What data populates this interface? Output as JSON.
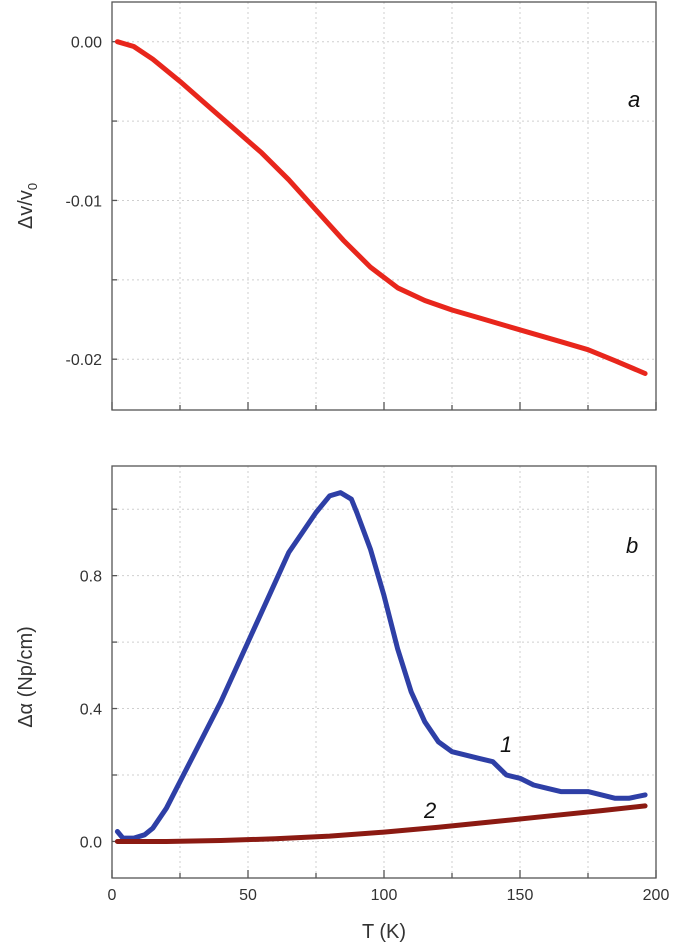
{
  "chart_data": [
    {
      "panel": "a",
      "type": "line",
      "ylabel": "Δv/v",
      "ylabel_subscript": "0",
      "xlabel": "",
      "xlim": [
        0,
        200
      ],
      "ylim": [
        -0.0232,
        0.0025
      ],
      "xticks": [
        0,
        50,
        100,
        150,
        200
      ],
      "yticks": [
        0.0,
        -0.01,
        -0.02
      ],
      "ytick_labels": [
        "0.00",
        "-0.01",
        "-0.02"
      ],
      "grid": true,
      "series": [
        {
          "color": "#e8261c",
          "points": [
            [
              2,
              0.0
            ],
            [
              8,
              -0.0003
            ],
            [
              15,
              -0.0011
            ],
            [
              25,
              -0.0025
            ],
            [
              35,
              -0.004
            ],
            [
              45,
              -0.0055
            ],
            [
              55,
              -0.007
            ],
            [
              65,
              -0.0087
            ],
            [
              75,
              -0.0106
            ],
            [
              85,
              -0.0125
            ],
            [
              95,
              -0.0142
            ],
            [
              105,
              -0.0155
            ],
            [
              115,
              -0.0163
            ],
            [
              125,
              -0.0169
            ],
            [
              135,
              -0.0174
            ],
            [
              145,
              -0.0179
            ],
            [
              155,
              -0.0184
            ],
            [
              165,
              -0.0189
            ],
            [
              175,
              -0.0194
            ],
            [
              185,
              -0.0201
            ],
            [
              196,
              -0.0209
            ]
          ]
        }
      ]
    },
    {
      "panel": "b",
      "type": "line",
      "ylabel": "Δα (Np/cm)",
      "xlabel": "T (K)",
      "xlim": [
        0,
        200
      ],
      "ylim": [
        -0.11,
        1.13
      ],
      "xticks": [
        0,
        50,
        100,
        150,
        200
      ],
      "xtick_labels": [
        "0",
        "50",
        "100",
        "150",
        "200"
      ],
      "yticks": [
        0.0,
        0.4,
        0.8
      ],
      "ytick_labels": [
        "0.0",
        "0.4",
        "0.8"
      ],
      "grid": true,
      "series": [
        {
          "name": "1",
          "color": "#2e3fa6",
          "points": [
            [
              2,
              0.03
            ],
            [
              4,
              0.01
            ],
            [
              8,
              0.01
            ],
            [
              12,
              0.02
            ],
            [
              15,
              0.04
            ],
            [
              20,
              0.1
            ],
            [
              25,
              0.18
            ],
            [
              30,
              0.26
            ],
            [
              40,
              0.42
            ],
            [
              50,
              0.6
            ],
            [
              60,
              0.78
            ],
            [
              65,
              0.87
            ],
            [
              70,
              0.93
            ],
            [
              75,
              0.99
            ],
            [
              80,
              1.04
            ],
            [
              84,
              1.05
            ],
            [
              88,
              1.03
            ],
            [
              90,
              0.99
            ],
            [
              95,
              0.88
            ],
            [
              100,
              0.74
            ],
            [
              105,
              0.58
            ],
            [
              110,
              0.45
            ],
            [
              115,
              0.36
            ],
            [
              120,
              0.3
            ],
            [
              125,
              0.27
            ],
            [
              130,
              0.26
            ],
            [
              135,
              0.25
            ],
            [
              140,
              0.24
            ],
            [
              145,
              0.2
            ],
            [
              150,
              0.19
            ],
            [
              155,
              0.17
            ],
            [
              160,
              0.16
            ],
            [
              165,
              0.15
            ],
            [
              170,
              0.15
            ],
            [
              175,
              0.15
            ],
            [
              180,
              0.14
            ],
            [
              185,
              0.13
            ],
            [
              190,
              0.13
            ],
            [
              196,
              0.14
            ]
          ]
        },
        {
          "name": "2",
          "color": "#8b1a12",
          "points": [
            [
              2,
              0.0
            ],
            [
              20,
              0.0
            ],
            [
              40,
              0.003
            ],
            [
              60,
              0.008
            ],
            [
              80,
              0.016
            ],
            [
              100,
              0.028
            ],
            [
              120,
              0.043
            ],
            [
              140,
              0.059
            ],
            [
              160,
              0.076
            ],
            [
              180,
              0.093
            ],
            [
              196,
              0.107
            ]
          ]
        }
      ]
    }
  ]
}
